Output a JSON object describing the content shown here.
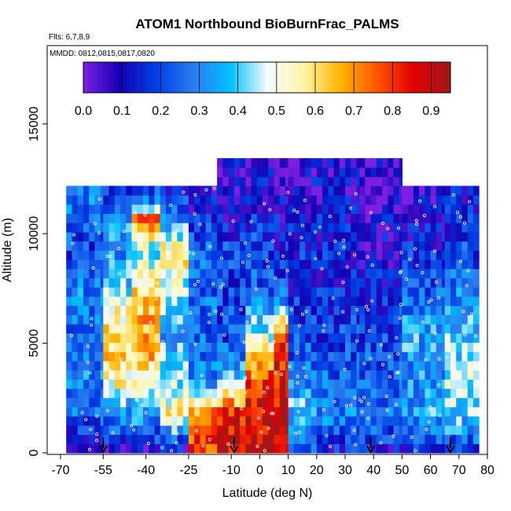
{
  "chart_data": {
    "type": "heatmap",
    "title": "ATOM1 Northbound BioBurnFrac_PALMS",
    "annotations": {
      "flights": "Flts: 6,7,8,9",
      "dates": "MMDD: 0812,0815,0817,0820"
    },
    "xlabel": "Latitude (deg N)",
    "ylabel": "Altitude (m)",
    "xlim": [
      -70,
      80
    ],
    "ylim": [
      0,
      17500
    ],
    "x_ticks": [
      -70,
      -55,
      -40,
      -25,
      -10,
      0,
      10,
      20,
      30,
      40,
      50,
      60,
      70,
      80
    ],
    "x_tick_labels": [
      "-70",
      "-55",
      "-40",
      "-25",
      "-10",
      "0",
      "10",
      "20",
      "30",
      "40",
      "50",
      "60",
      "70",
      "80"
    ],
    "y_ticks": [
      0,
      5000,
      10000,
      15000
    ],
    "y_tick_labels": [
      "0",
      "5000",
      "10000",
      "15000"
    ],
    "colorbar": {
      "min": 0.0,
      "max": 0.95,
      "ticks": [
        "0.0",
        "0.1",
        "0.2",
        "0.3",
        "0.4",
        "0.5",
        "0.6",
        "0.7",
        "0.8",
        "0.9"
      ],
      "colors": [
        "#7b1fe0",
        "#1400b4",
        "#0040e6",
        "#2a7cf0",
        "#00c0ff",
        "#f4faff",
        "#fff6a8",
        "#ffb400",
        "#ff5500",
        "#e10000",
        "#a01818"
      ]
    },
    "arrow_latitudes": [
      -55,
      -9,
      39,
      67
    ],
    "grid": false,
    "legend": "colorbar-top",
    "latitude_bands": [
      {
        "lat": [
          -68,
          -55
        ],
        "profile": [
          [
            0,
            0.05
          ],
          [
            1500,
            0.25
          ],
          [
            3000,
            0.3
          ],
          [
            5000,
            0.25
          ],
          [
            7000,
            0.3
          ],
          [
            9000,
            0.2
          ],
          [
            10500,
            0.25
          ],
          [
            11500,
            0.3
          ]
        ]
      },
      {
        "lat": [
          -55,
          -45
        ],
        "profile": [
          [
            0,
            0.1
          ],
          [
            1500,
            0.3
          ],
          [
            3000,
            0.55
          ],
          [
            5000,
            0.65
          ],
          [
            7000,
            0.45
          ],
          [
            9000,
            0.3
          ],
          [
            10500,
            0.35
          ],
          [
            11500,
            0.2
          ]
        ]
      },
      {
        "lat": [
          -45,
          -35
        ],
        "profile": [
          [
            0,
            0.1
          ],
          [
            1500,
            0.35
          ],
          [
            3000,
            0.55
          ],
          [
            5000,
            0.7
          ],
          [
            7000,
            0.6
          ],
          [
            9000,
            0.45
          ],
          [
            10500,
            0.75
          ],
          [
            11500,
            0.2
          ]
        ]
      },
      {
        "lat": [
          -35,
          -25
        ],
        "profile": [
          [
            0,
            0.12
          ],
          [
            1500,
            0.55
          ],
          [
            3000,
            0.45
          ],
          [
            5000,
            0.35
          ],
          [
            7000,
            0.45
          ],
          [
            9000,
            0.6
          ],
          [
            10500,
            0.3
          ],
          [
            11500,
            0.15
          ]
        ]
      },
      {
        "lat": [
          -25,
          -15
        ],
        "profile": [
          [
            0,
            0.8
          ],
          [
            1500,
            0.75
          ],
          [
            3000,
            0.3
          ],
          [
            5000,
            0.25
          ],
          [
            7000,
            0.25
          ],
          [
            9000,
            0.25
          ],
          [
            10500,
            0.15
          ],
          [
            11500,
            0.1
          ]
        ]
      },
      {
        "lat": [
          -15,
          -5
        ],
        "profile": [
          [
            0,
            0.88
          ],
          [
            1500,
            0.85
          ],
          [
            3000,
            0.4
          ],
          [
            5000,
            0.2
          ],
          [
            7000,
            0.2
          ],
          [
            9000,
            0.2
          ],
          [
            10500,
            0.12
          ],
          [
            11500,
            0.1
          ],
          [
            12800,
            0.08
          ]
        ]
      },
      {
        "lat": [
          -5,
          5
        ],
        "profile": [
          [
            0,
            0.9
          ],
          [
            1500,
            0.88
          ],
          [
            3000,
            0.8
          ],
          [
            5000,
            0.5
          ],
          [
            7000,
            0.25
          ],
          [
            9000,
            0.2
          ],
          [
            10500,
            0.15
          ],
          [
            11500,
            0.1
          ],
          [
            12800,
            0.08
          ]
        ]
      },
      {
        "lat": [
          5,
          10
        ],
        "profile": [
          [
            0,
            0.9
          ],
          [
            1500,
            0.88
          ],
          [
            3000,
            0.85
          ],
          [
            5000,
            0.82
          ],
          [
            7000,
            0.25
          ],
          [
            9000,
            0.15
          ],
          [
            10500,
            0.12
          ],
          [
            11500,
            0.1
          ],
          [
            12800,
            0.08
          ]
        ]
      },
      {
        "lat": [
          10,
          20
        ],
        "profile": [
          [
            0,
            0.2
          ],
          [
            1500,
            0.4
          ],
          [
            3000,
            0.3
          ],
          [
            5000,
            0.2
          ],
          [
            7000,
            0.15
          ],
          [
            9000,
            0.15
          ],
          [
            10500,
            0.12
          ],
          [
            11500,
            0.1
          ],
          [
            12800,
            0.08
          ]
        ]
      },
      {
        "lat": [
          20,
          35
        ],
        "profile": [
          [
            0,
            0.15
          ],
          [
            1500,
            0.3
          ],
          [
            3000,
            0.25
          ],
          [
            5000,
            0.2
          ],
          [
            7000,
            0.15
          ],
          [
            9000,
            0.15
          ],
          [
            10500,
            0.12
          ],
          [
            11500,
            0.1
          ],
          [
            12800,
            0.08
          ]
        ]
      },
      {
        "lat": [
          35,
          50
        ],
        "profile": [
          [
            0,
            0.12
          ],
          [
            1500,
            0.3
          ],
          [
            3000,
            0.25
          ],
          [
            5000,
            0.2
          ],
          [
            7000,
            0.15
          ],
          [
            9000,
            0.1
          ],
          [
            10500,
            0.08
          ],
          [
            11500,
            0.05
          ],
          [
            12800,
            0.05
          ]
        ]
      },
      {
        "lat": [
          50,
          65
        ],
        "profile": [
          [
            0,
            0.15
          ],
          [
            1500,
            0.35
          ],
          [
            3000,
            0.3
          ],
          [
            5000,
            0.35
          ],
          [
            7000,
            0.25
          ],
          [
            9000,
            0.15
          ],
          [
            10500,
            0.1
          ],
          [
            11500,
            0.08
          ]
        ]
      },
      {
        "lat": [
          65,
          77
        ],
        "profile": [
          [
            0,
            0.2
          ],
          [
            1500,
            0.4
          ],
          [
            3000,
            0.45
          ],
          [
            5000,
            0.4
          ],
          [
            7000,
            0.3
          ],
          [
            9000,
            0.2
          ],
          [
            10500,
            0.15
          ],
          [
            11500,
            0.12
          ]
        ]
      }
    ]
  }
}
